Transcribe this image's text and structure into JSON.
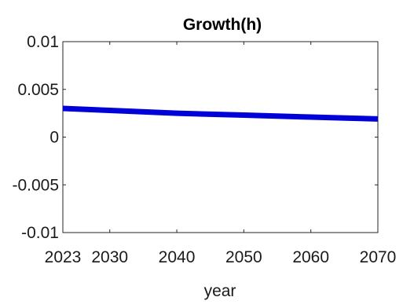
{
  "chart_data": {
    "type": "line",
    "title": "Growth(h)",
    "xlabel": "year",
    "ylabel": "",
    "xlim": [
      2023,
      2070
    ],
    "ylim": [
      -0.01,
      0.01
    ],
    "x_ticks": [
      2023,
      2030,
      2040,
      2050,
      2060,
      2070
    ],
    "x_tick_labels": [
      "2023",
      "2030",
      "2040",
      "2050",
      "2060",
      "2070"
    ],
    "y_ticks": [
      0.01,
      0.005,
      0,
      -0.005,
      -0.01
    ],
    "y_tick_labels": [
      "0.01",
      "0.005",
      "0",
      "-0.005",
      "-0.01"
    ],
    "grid": false,
    "series": [
      {
        "color": "#0000d8",
        "x": [
          2023,
          2030,
          2040,
          2050,
          2060,
          2070
        ],
        "values": [
          0.003,
          0.0028,
          0.0025,
          0.0023,
          0.0021,
          0.0019
        ]
      }
    ]
  }
}
